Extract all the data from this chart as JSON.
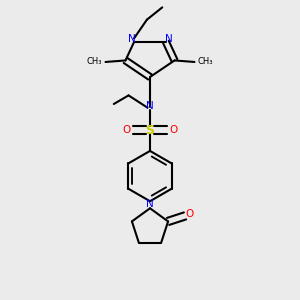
{
  "bg_color": "#ebebeb",
  "bond_color": "#000000",
  "n_color": "#0000ff",
  "o_color": "#ff0000",
  "s_color": "#cccc00",
  "line_width": 1.5,
  "figsize": [
    3.0,
    3.0
  ],
  "dpi": 100,
  "xlim": [
    0.15,
    0.85
  ],
  "ylim": [
    0.02,
    0.98
  ]
}
